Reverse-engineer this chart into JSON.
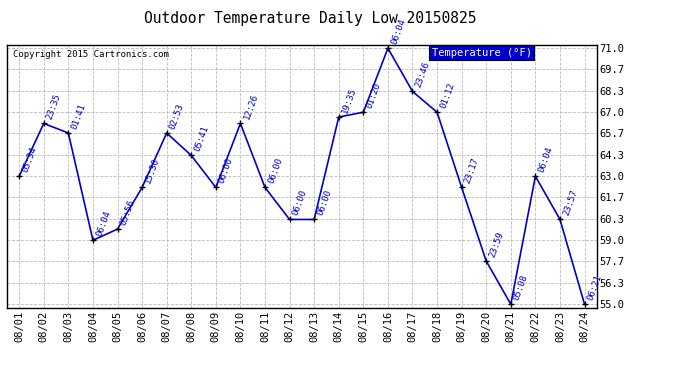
{
  "title": "Outdoor Temperature Daily Low 20150825",
  "copyright": "Copyright 2015 Cartronics.com",
  "legend_label": "Temperature (°F)",
  "dates": [
    "08/01",
    "08/02",
    "08/03",
    "08/04",
    "08/05",
    "08/06",
    "08/07",
    "08/08",
    "08/09",
    "08/10",
    "08/11",
    "08/12",
    "08/13",
    "08/14",
    "08/15",
    "08/16",
    "08/17",
    "08/18",
    "08/19",
    "08/20",
    "08/21",
    "08/22",
    "08/23",
    "08/24"
  ],
  "temps": [
    63.0,
    66.3,
    65.7,
    59.0,
    59.7,
    62.3,
    65.7,
    64.3,
    62.3,
    66.3,
    62.3,
    60.3,
    60.3,
    66.7,
    67.0,
    71.0,
    68.3,
    67.0,
    62.3,
    57.7,
    55.0,
    63.0,
    60.3,
    55.0
  ],
  "time_labels": [
    "05:34",
    "23:35",
    "01:41",
    "06:04",
    "05:56",
    "15:30",
    "02:53",
    "05:41",
    "06:00",
    "12:26",
    "06:00",
    "06:00",
    "06:00",
    "19:35",
    "01:20",
    "06:04",
    "23:46",
    "01:12",
    "23:17",
    "23:59",
    "05:08",
    "06:04",
    "23:57",
    "06:21"
  ],
  "ylim": [
    55.0,
    71.0
  ],
  "yticks": [
    55.0,
    56.3,
    57.7,
    59.0,
    60.3,
    61.7,
    63.0,
    64.3,
    65.7,
    67.0,
    68.3,
    69.7,
    71.0
  ],
  "line_color": "#0000cc",
  "marker_color": "#000000",
  "bg_color": "#ffffff",
  "grid_color": "#bbbbbb",
  "label_color": "#0000cc",
  "title_color": "#000000",
  "copyright_color": "#000000",
  "legend_bg": "#0000cc",
  "legend_fg": "#ffffff"
}
